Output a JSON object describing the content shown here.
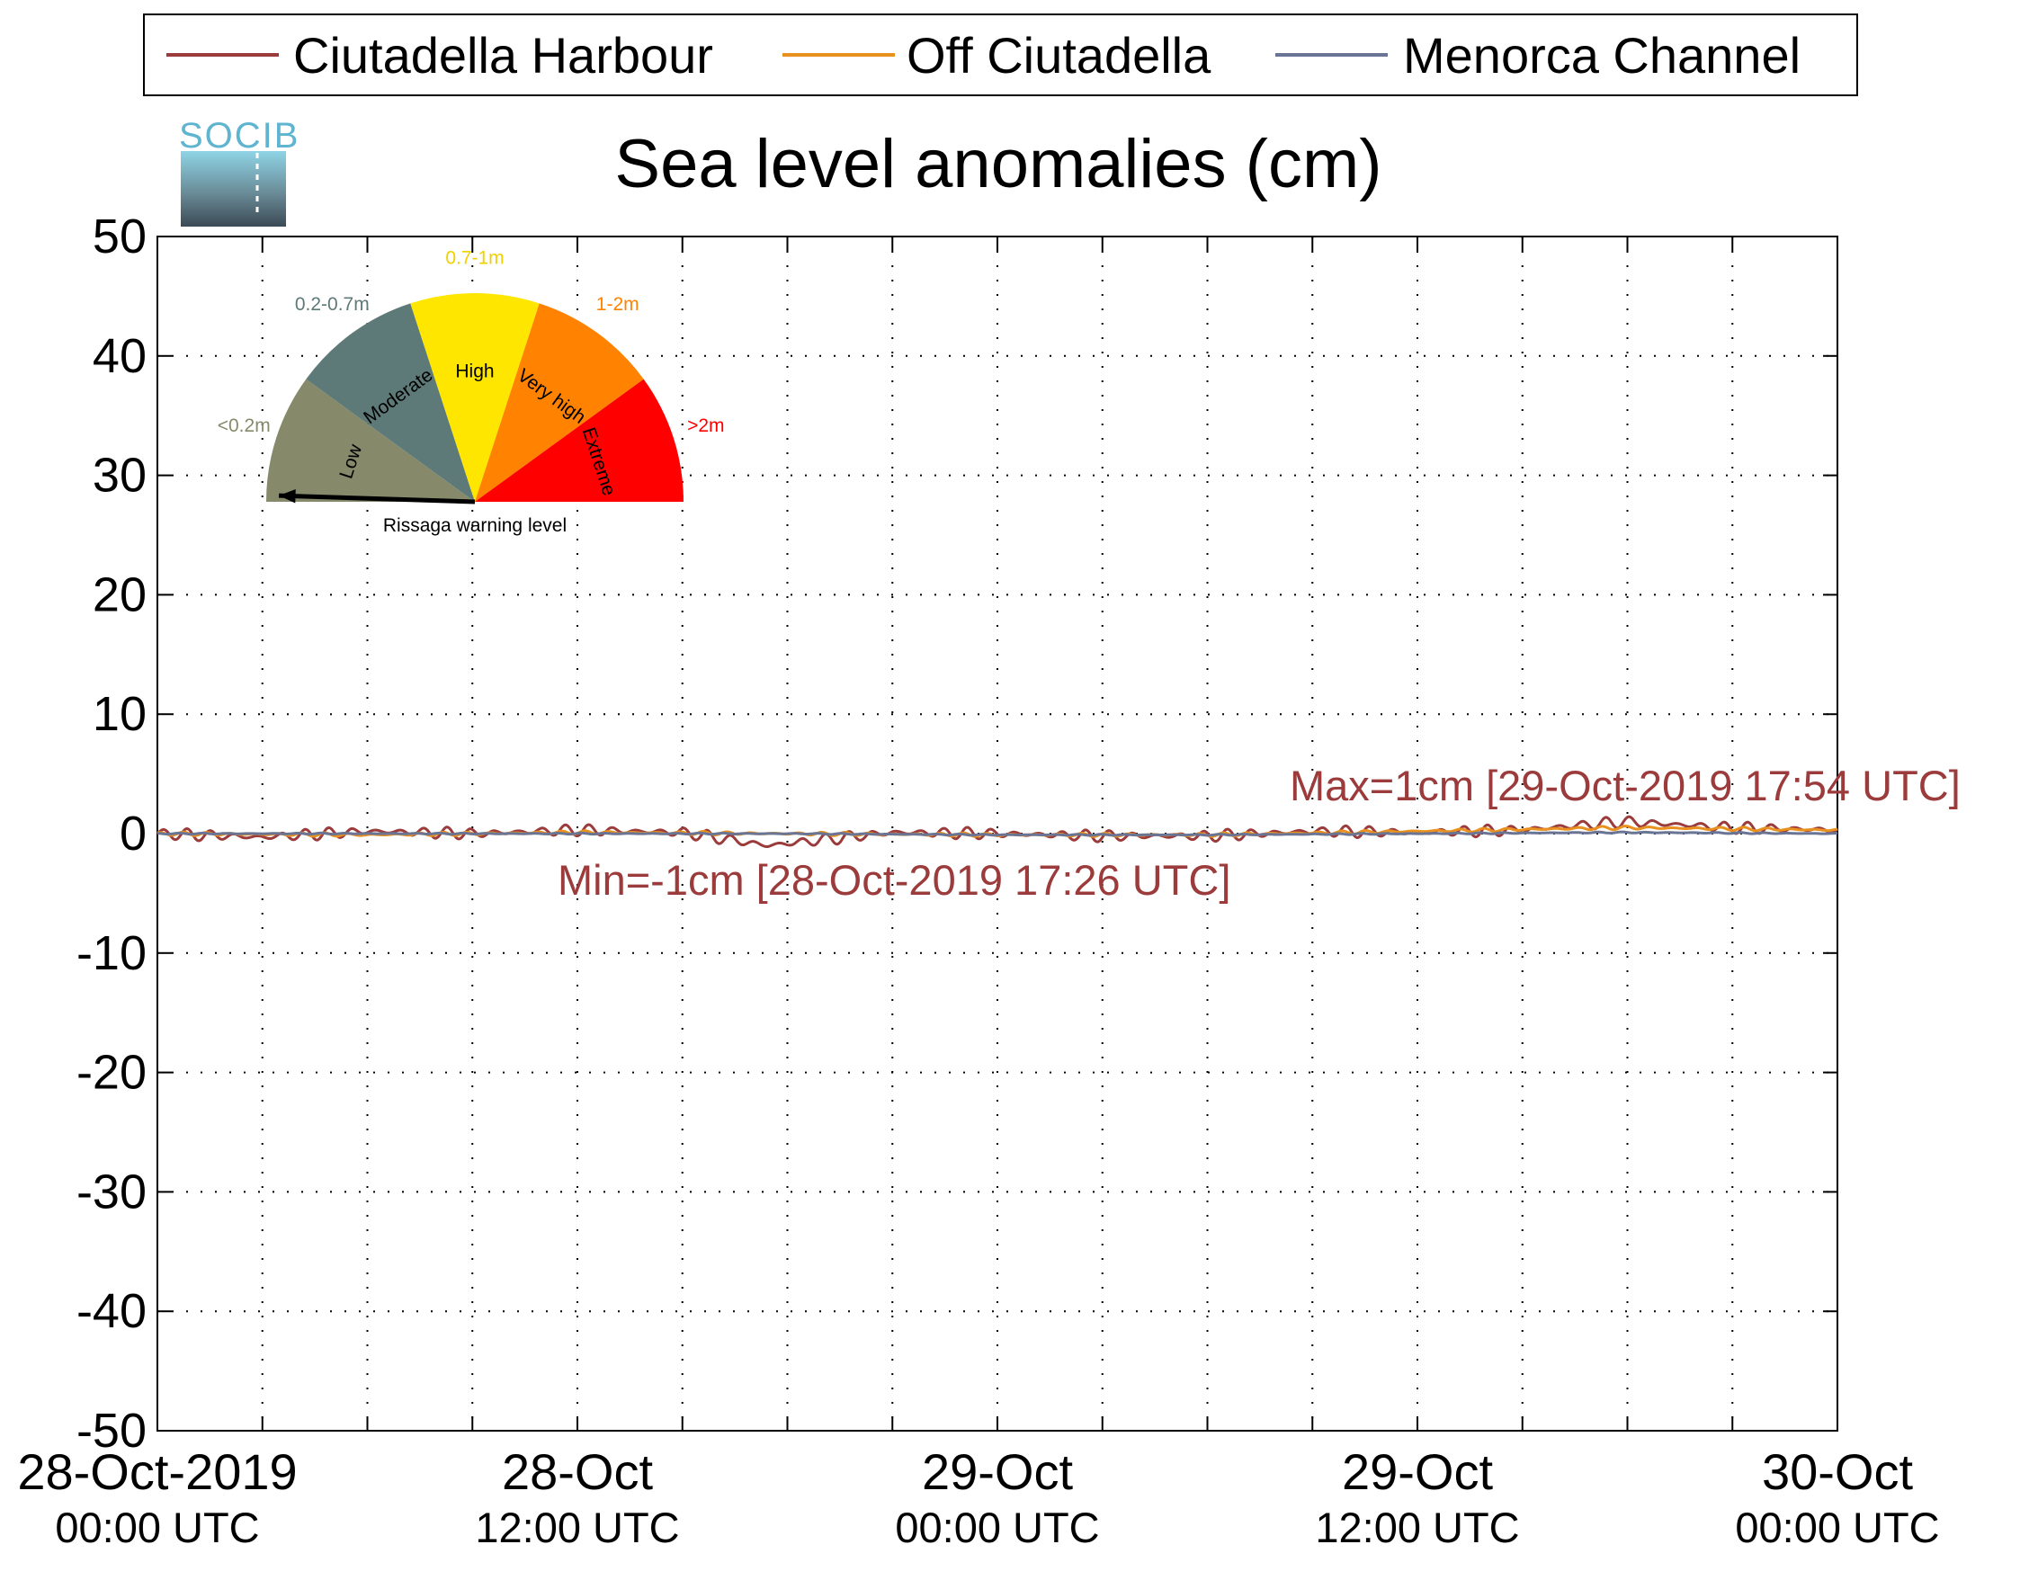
{
  "chart_data": {
    "type": "line",
    "title": "Sea level anomalies (cm)",
    "ylim": [
      -50,
      50
    ],
    "yticks": [
      50,
      40,
      30,
      20,
      10,
      0,
      -10,
      -20,
      -30,
      -40,
      -50
    ],
    "xlim_hours": [
      0,
      48
    ],
    "xtick_labels": [
      {
        "date": "28-Oct-2019",
        "time": "00:00 UTC"
      },
      {
        "date": "28-Oct",
        "time": "12:00 UTC"
      },
      {
        "date": "29-Oct",
        "time": "00:00 UTC"
      },
      {
        "date": "29-Oct",
        "time": "12:00 UTC"
      },
      {
        "date": "30-Oct",
        "time": "00:00 UTC"
      }
    ],
    "grid": true,
    "legend_placement": "top",
    "series": [
      {
        "name": "Ciutadella Harbour",
        "color": "#9b3b3b",
        "x": [
          "28-Oct-2019 00:00",
          "28-Oct-2019 03:00",
          "28-Oct-2019 06:00",
          "28-Oct-2019 09:00",
          "28-Oct-2019 12:00",
          "28-Oct-2019 15:00",
          "28-Oct-2019 17:26",
          "28-Oct-2019 21:00",
          "29-Oct-2019 00:00",
          "29-Oct-2019 03:00",
          "29-Oct-2019 06:00",
          "29-Oct-2019 09:00",
          "29-Oct-2019 12:00",
          "29-Oct-2019 15:00",
          "29-Oct-2019 17:54",
          "29-Oct-2019 21:00",
          "30-Oct-2019 00:00"
        ],
        "y": [
          0,
          -0.3,
          0.2,
          0,
          0.3,
          0.1,
          -1,
          0.1,
          0,
          -0.2,
          -0.2,
          0.2,
          0.1,
          0.3,
          1,
          0.5,
          0.3
        ],
        "amplitude": 0.5
      },
      {
        "name": "Off Ciutadella",
        "color": "#e8911e",
        "x": [
          "28-Oct-2019 00:00",
          "28-Oct-2019 06:00",
          "28-Oct-2019 12:00",
          "28-Oct-2019 18:00",
          "29-Oct-2019 00:00",
          "29-Oct-2019 06:00",
          "29-Oct-2019 12:00",
          "29-Oct-2019 18:00",
          "30-Oct-2019 00:00"
        ],
        "y": [
          0,
          -0.1,
          0.1,
          0,
          -0.1,
          -0.1,
          0.2,
          0.5,
          0.3
        ],
        "amplitude": 0.15
      },
      {
        "name": "Menorca Channel",
        "color": "#6a7595",
        "x": [
          "28-Oct-2019 00:00",
          "28-Oct-2019 06:00",
          "28-Oct-2019 12:00",
          "28-Oct-2019 18:00",
          "29-Oct-2019 00:00",
          "29-Oct-2019 06:00",
          "29-Oct-2019 12:00",
          "29-Oct-2019 18:00",
          "30-Oct-2019 00:00"
        ],
        "y": [
          0,
          0,
          0,
          0,
          -0.1,
          -0.1,
          0,
          0.1,
          0
        ],
        "amplitude": 0.05
      }
    ],
    "annotations": [
      {
        "text": "Max=1cm [29-Oct-2019 17:54 UTC]",
        "color": "#9b3b3b"
      },
      {
        "text": "Min=-1cm [28-Oct-2019 17:26 UTC]",
        "color": "#9b3b3b"
      }
    ]
  },
  "logo": {
    "text": "SOCIB",
    "color": "#5fb4d0"
  },
  "gauge": {
    "caption": "Rissaga warning level",
    "needle_level": "Low",
    "segments": [
      {
        "label": "Low",
        "range": "<0.2m",
        "color": "#868a6b",
        "range_color": "#868a6b"
      },
      {
        "label": "Moderate",
        "range": "0.2-0.7m",
        "color": "#5e7a78",
        "range_color": "#5e7a78"
      },
      {
        "label": "High",
        "range": "0.7-1m",
        "color": "#ffe600",
        "range_color": "#f2d000"
      },
      {
        "label": "Very high",
        "range": "1-2m",
        "color": "#ff8200",
        "range_color": "#ff8200"
      },
      {
        "label": "Extreme",
        "range": ">2m",
        "color": "#ff0000",
        "range_color": "#ff0000"
      }
    ]
  }
}
